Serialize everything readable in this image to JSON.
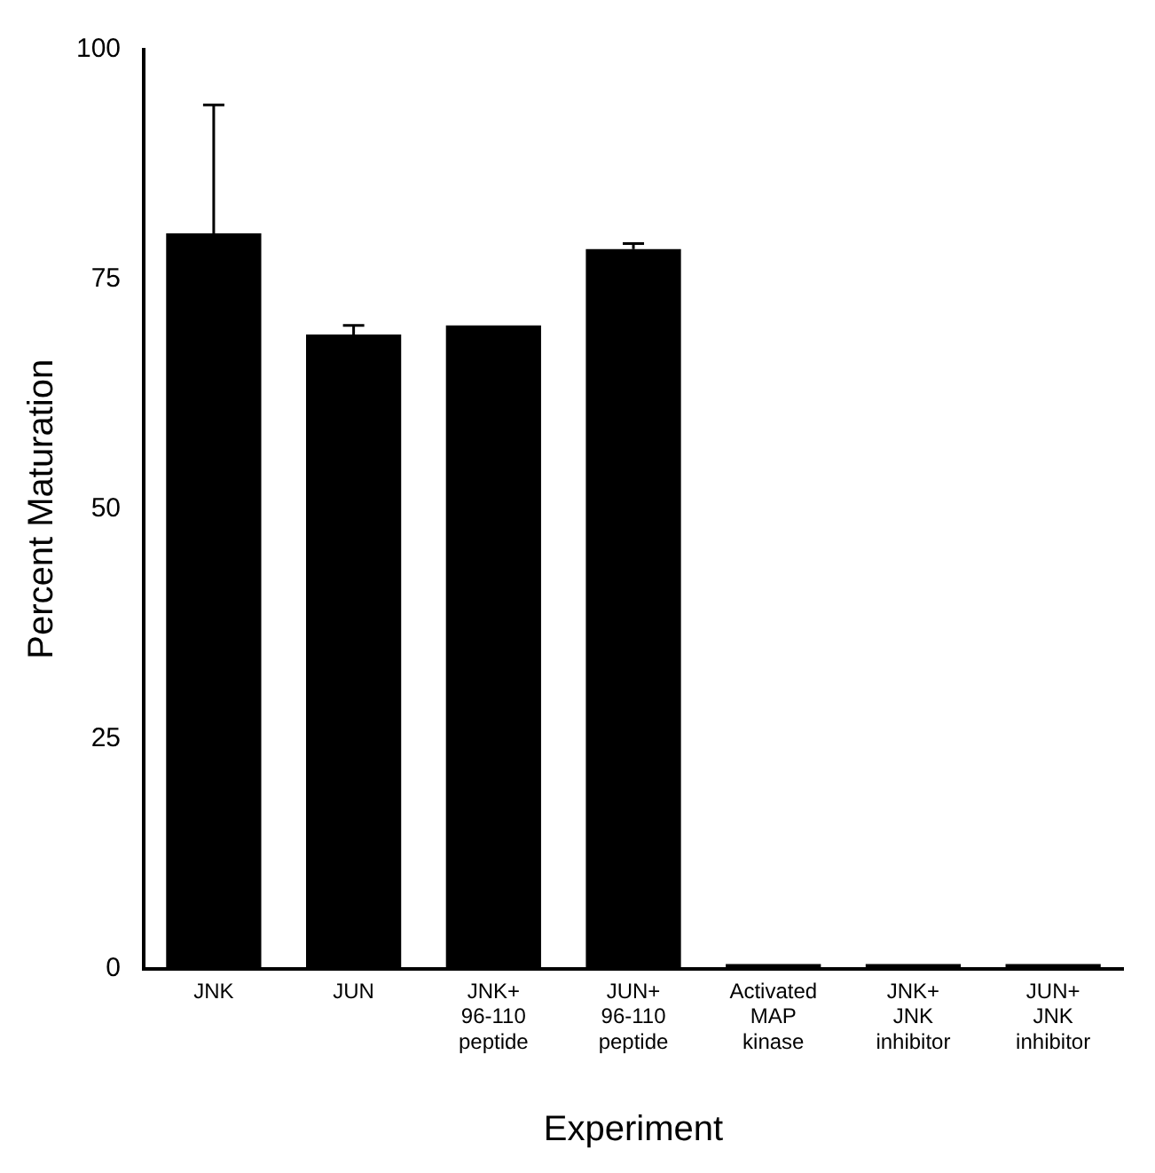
{
  "chart_data": {
    "type": "bar",
    "xlabel": "Experiment",
    "ylabel": "Percent Maturation",
    "categories": [
      "JNK",
      "JUN",
      "JNK+\n96-110\npeptide",
      "JUN+\n96-110\npeptide",
      "Activated\nMAP\nkinase",
      "JNK+\nJNK\ninhibitor",
      "JUN+\nJNK\ninhibitor"
    ],
    "values": [
      80,
      69,
      70,
      78.3,
      0.5,
      0.5,
      0.5
    ],
    "errors": [
      14,
      1,
      null,
      0.6,
      null,
      null,
      null
    ],
    "color": "#000000",
    "ylim": [
      0,
      100
    ],
    "yticks": [
      0,
      25,
      50,
      75,
      100
    ],
    "grid": false,
    "legend": false
  }
}
